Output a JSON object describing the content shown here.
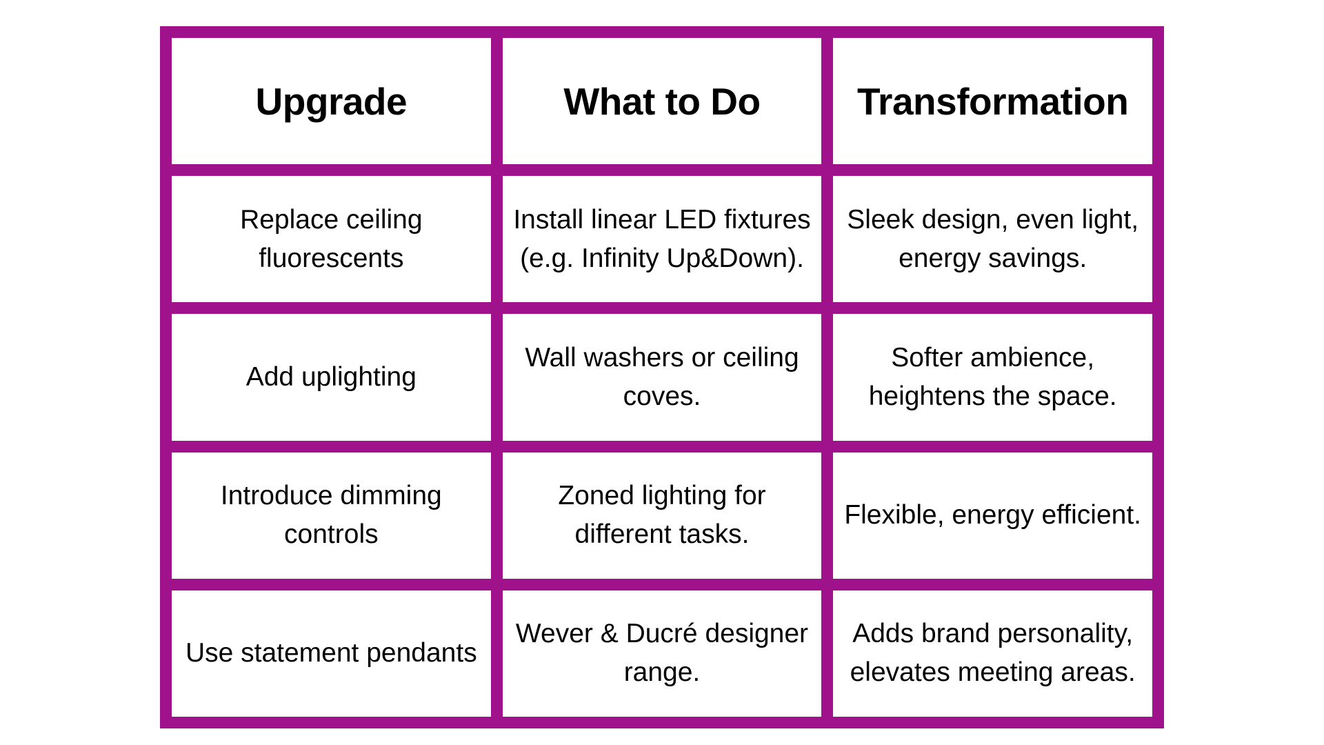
{
  "table": {
    "colors": {
      "border": "#a0128c",
      "cell_background": "#ffffff",
      "text": "#000000"
    },
    "headers": [
      "Upgrade",
      "What to Do",
      "Transformation"
    ],
    "rows": [
      [
        "Replace ceiling fluorescents",
        "Install linear LED fixtures (e.g. Infinity Up&Down).",
        "Sleek design, even light, energy savings."
      ],
      [
        "Add uplighting",
        "Wall washers or ceiling coves.",
        "Softer ambience, heightens the space."
      ],
      [
        "Introduce dimming controls",
        "Zoned lighting for different tasks.",
        "Flexible, energy efficient."
      ],
      [
        "Use statement pendants",
        "Wever & Ducré designer range.",
        "Adds brand personality, elevates meeting areas."
      ]
    ]
  }
}
